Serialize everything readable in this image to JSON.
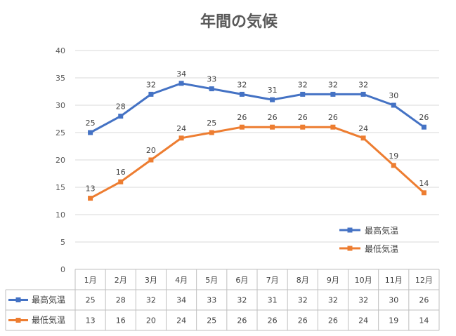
{
  "chart_data": {
    "type": "line",
    "title": "年間の気候",
    "categories": [
      "1月",
      "2月",
      "3月",
      "4月",
      "5月",
      "6月",
      "7月",
      "8月",
      "9月",
      "10月",
      "11月",
      "12月"
    ],
    "series": [
      {
        "name": "最高気温",
        "color": "#4472C4",
        "values": [
          25,
          28,
          32,
          34,
          33,
          32,
          31,
          32,
          32,
          32,
          30,
          26
        ]
      },
      {
        "name": "最低気温",
        "color": "#ED7D31",
        "values": [
          13,
          16,
          20,
          24,
          25,
          26,
          26,
          26,
          26,
          24,
          19,
          14
        ]
      }
    ],
    "ylim": [
      0,
      40
    ],
    "yticks": [
      0,
      5,
      10,
      15,
      20,
      25,
      30,
      35,
      40
    ],
    "grid": true,
    "data_labels": true,
    "legend": "bottom-right inside plot",
    "data_table": true
  }
}
